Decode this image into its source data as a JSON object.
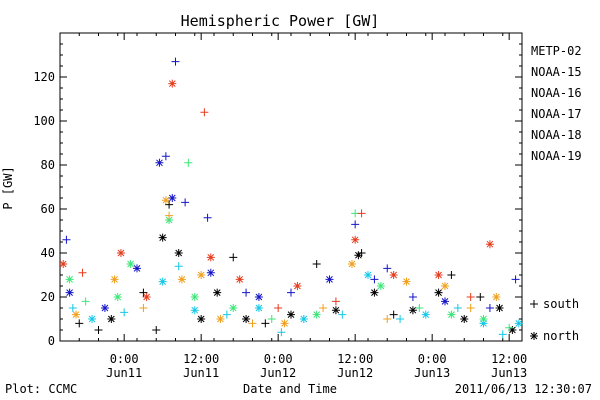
{
  "chart_data": {
    "type": "scatter",
    "title": "Hemispheric Power [GW]",
    "ylabel": "P [GW]",
    "xlabel": "Date and Time",
    "ylim": [
      0,
      140
    ],
    "xlim": [
      "2011-06-10T14:00",
      "2011-06-13T14:00"
    ],
    "y_ticks": [
      0,
      20,
      40,
      60,
      80,
      100,
      120
    ],
    "x_ticks": [
      {
        "value": "2011-06-11T00:00",
        "time": "0:00",
        "date": "Jun11"
      },
      {
        "value": "2011-06-11T12:00",
        "time": "12:00",
        "date": "Jun11"
      },
      {
        "value": "2011-06-12T00:00",
        "time": "0:00",
        "date": "Jun12"
      },
      {
        "value": "2011-06-12T12:00",
        "time": "12:00",
        "date": "Jun12"
      },
      {
        "value": "2011-06-13T00:00",
        "time": "0:00",
        "date": "Jun13"
      },
      {
        "value": "2011-06-13T12:00",
        "time": "12:00",
        "date": "Jun13"
      }
    ],
    "grid": false,
    "legend": "right",
    "marker_legend": [
      {
        "symbol": "+",
        "label": "south"
      },
      {
        "symbol": "*",
        "label": "north"
      }
    ],
    "series": [
      {
        "name": "METP-02",
        "color": "#000000",
        "points": [
          {
            "x": "2011-06-10T17:00",
            "y": 8,
            "m": "+"
          },
          {
            "x": "2011-06-10T20:00",
            "y": 5,
            "m": "+"
          },
          {
            "x": "2011-06-10T22:00",
            "y": 10,
            "m": "*"
          },
          {
            "x": "2011-06-11T03:00",
            "y": 22,
            "m": "+"
          },
          {
            "x": "2011-06-11T05:00",
            "y": 5,
            "m": "+"
          },
          {
            "x": "2011-06-11T06:00",
            "y": 47,
            "m": "*"
          },
          {
            "x": "2011-06-11T07:00",
            "y": 62,
            "m": "+"
          },
          {
            "x": "2011-06-11T08:30",
            "y": 40,
            "m": "*"
          },
          {
            "x": "2011-06-11T12:00",
            "y": 10,
            "m": "*"
          },
          {
            "x": "2011-06-11T14:30",
            "y": 22,
            "m": "*"
          },
          {
            "x": "2011-06-11T17:00",
            "y": 38,
            "m": "+"
          },
          {
            "x": "2011-06-11T19:00",
            "y": 10,
            "m": "*"
          },
          {
            "x": "2011-06-11T22:00",
            "y": 8,
            "m": "+"
          },
          {
            "x": "2011-06-12T02:00",
            "y": 12,
            "m": "*"
          },
          {
            "x": "2011-06-12T06:00",
            "y": 35,
            "m": "+"
          },
          {
            "x": "2011-06-12T09:00",
            "y": 14,
            "m": "*"
          },
          {
            "x": "2011-06-12T12:30",
            "y": 39,
            "m": "*"
          },
          {
            "x": "2011-06-12T13:00",
            "y": 40,
            "m": "+"
          },
          {
            "x": "2011-06-12T15:00",
            "y": 22,
            "m": "*"
          },
          {
            "x": "2011-06-12T18:00",
            "y": 12,
            "m": "+"
          },
          {
            "x": "2011-06-12T21:00",
            "y": 14,
            "m": "*"
          },
          {
            "x": "2011-06-13T01:00",
            "y": 22,
            "m": "*"
          },
          {
            "x": "2011-06-13T03:00",
            "y": 30,
            "m": "+"
          },
          {
            "x": "2011-06-13T05:00",
            "y": 10,
            "m": "*"
          },
          {
            "x": "2011-06-13T07:30",
            "y": 20,
            "m": "+"
          },
          {
            "x": "2011-06-13T10:30",
            "y": 15,
            "m": "*"
          },
          {
            "x": "2011-06-13T12:30",
            "y": 5,
            "m": "*"
          }
        ]
      },
      {
        "name": "NOAA-15",
        "color": "#1414c8",
        "points": [
          {
            "x": "2011-06-10T15:00",
            "y": 46,
            "m": "+"
          },
          {
            "x": "2011-06-10T15:30",
            "y": 22,
            "m": "*"
          },
          {
            "x": "2011-06-10T21:00",
            "y": 15,
            "m": "*"
          },
          {
            "x": "2011-06-11T02:00",
            "y": 33,
            "m": "*"
          },
          {
            "x": "2011-06-11T05:30",
            "y": 81,
            "m": "*"
          },
          {
            "x": "2011-06-11T06:30",
            "y": 84,
            "m": "+"
          },
          {
            "x": "2011-06-11T07:30",
            "y": 65,
            "m": "*"
          },
          {
            "x": "2011-06-11T08:00",
            "y": 127,
            "m": "+"
          },
          {
            "x": "2011-06-11T09:30",
            "y": 63,
            "m": "+"
          },
          {
            "x": "2011-06-11T13:00",
            "y": 56,
            "m": "+"
          },
          {
            "x": "2011-06-11T13:30",
            "y": 31,
            "m": "*"
          },
          {
            "x": "2011-06-11T19:00",
            "y": 22,
            "m": "+"
          },
          {
            "x": "2011-06-11T21:00",
            "y": 20,
            "m": "*"
          },
          {
            "x": "2011-06-12T02:00",
            "y": 22,
            "m": "+"
          },
          {
            "x": "2011-06-12T08:00",
            "y": 28,
            "m": "*"
          },
          {
            "x": "2011-06-12T12:00",
            "y": 53,
            "m": "+"
          },
          {
            "x": "2011-06-12T15:00",
            "y": 28,
            "m": "+"
          },
          {
            "x": "2011-06-12T17:00",
            "y": 33,
            "m": "+"
          },
          {
            "x": "2011-06-12T21:00",
            "y": 20,
            "m": "+"
          },
          {
            "x": "2011-06-13T02:00",
            "y": 18,
            "m": "*"
          },
          {
            "x": "2011-06-13T09:00",
            "y": 15,
            "m": "+"
          },
          {
            "x": "2011-06-13T13:00",
            "y": 28,
            "m": "+"
          }
        ]
      },
      {
        "name": "NOAA-16",
        "color": "#14c8e6",
        "points": [
          {
            "x": "2011-06-10T16:00",
            "y": 15,
            "m": "+"
          },
          {
            "x": "2011-06-10T19:00",
            "y": 10,
            "m": "*"
          },
          {
            "x": "2011-06-11T00:00",
            "y": 13,
            "m": "+"
          },
          {
            "x": "2011-06-11T06:00",
            "y": 27,
            "m": "*"
          },
          {
            "x": "2011-06-11T08:30",
            "y": 34,
            "m": "+"
          },
          {
            "x": "2011-06-11T11:00",
            "y": 14,
            "m": "*"
          },
          {
            "x": "2011-06-11T16:00",
            "y": 12,
            "m": "+"
          },
          {
            "x": "2011-06-11T21:00",
            "y": 15,
            "m": "*"
          },
          {
            "x": "2011-06-12T00:30",
            "y": 4,
            "m": "+"
          },
          {
            "x": "2011-06-12T04:00",
            "y": 10,
            "m": "*"
          },
          {
            "x": "2011-06-12T10:00",
            "y": 12,
            "m": "+"
          },
          {
            "x": "2011-06-12T14:00",
            "y": 30,
            "m": "*"
          },
          {
            "x": "2011-06-12T19:00",
            "y": 10,
            "m": "+"
          },
          {
            "x": "2011-06-12T23:00",
            "y": 12,
            "m": "*"
          },
          {
            "x": "2011-06-13T04:00",
            "y": 15,
            "m": "+"
          },
          {
            "x": "2011-06-13T08:00",
            "y": 8,
            "m": "*"
          },
          {
            "x": "2011-06-13T11:00",
            "y": 3,
            "m": "+"
          },
          {
            "x": "2011-06-13T13:30",
            "y": 8,
            "m": "*"
          }
        ]
      },
      {
        "name": "NOAA-17",
        "color": "#3ce678",
        "points": [
          {
            "x": "2011-06-10T15:30",
            "y": 28,
            "m": "*"
          },
          {
            "x": "2011-06-10T18:00",
            "y": 18,
            "m": "+"
          },
          {
            "x": "2011-06-10T23:00",
            "y": 20,
            "m": "*"
          },
          {
            "x": "2011-06-11T01:00",
            "y": 35,
            "m": "*"
          },
          {
            "x": "2011-06-11T07:00",
            "y": 55,
            "m": "*"
          },
          {
            "x": "2011-06-11T10:00",
            "y": 81,
            "m": "+"
          },
          {
            "x": "2011-06-11T11:00",
            "y": 20,
            "m": "*"
          },
          {
            "x": "2011-06-11T17:00",
            "y": 15,
            "m": "*"
          },
          {
            "x": "2011-06-11T23:00",
            "y": 10,
            "m": "+"
          },
          {
            "x": "2011-06-12T06:00",
            "y": 12,
            "m": "*"
          },
          {
            "x": "2011-06-12T12:00",
            "y": 58,
            "m": "+"
          },
          {
            "x": "2011-06-12T16:00",
            "y": 25,
            "m": "*"
          },
          {
            "x": "2011-06-12T22:00",
            "y": 15,
            "m": "+"
          },
          {
            "x": "2011-06-13T03:00",
            "y": 12,
            "m": "*"
          },
          {
            "x": "2011-06-13T08:00",
            "y": 10,
            "m": "*"
          },
          {
            "x": "2011-06-13T12:00",
            "y": 6,
            "m": "+"
          }
        ]
      },
      {
        "name": "NOAA-18",
        "color": "#f0a01e",
        "points": [
          {
            "x": "2011-06-10T16:30",
            "y": 12,
            "m": "*"
          },
          {
            "x": "2011-06-10T22:30",
            "y": 28,
            "m": "*"
          },
          {
            "x": "2011-06-11T03:00",
            "y": 15,
            "m": "+"
          },
          {
            "x": "2011-06-11T06:30",
            "y": 64,
            "m": "*"
          },
          {
            "x": "2011-06-11T07:00",
            "y": 57,
            "m": "+"
          },
          {
            "x": "2011-06-11T09:00",
            "y": 28,
            "m": "*"
          },
          {
            "x": "2011-06-11T12:00",
            "y": 30,
            "m": "*"
          },
          {
            "x": "2011-06-11T15:00",
            "y": 10,
            "m": "*"
          },
          {
            "x": "2011-06-11T20:00",
            "y": 8,
            "m": "+"
          },
          {
            "x": "2011-06-12T01:00",
            "y": 8,
            "m": "*"
          },
          {
            "x": "2011-06-12T07:00",
            "y": 15,
            "m": "+"
          },
          {
            "x": "2011-06-12T11:30",
            "y": 35,
            "m": "*"
          },
          {
            "x": "2011-06-12T17:00",
            "y": 10,
            "m": "+"
          },
          {
            "x": "2011-06-12T20:00",
            "y": 27,
            "m": "*"
          },
          {
            "x": "2011-06-13T02:00",
            "y": 25,
            "m": "*"
          },
          {
            "x": "2011-06-13T06:00",
            "y": 15,
            "m": "+"
          },
          {
            "x": "2011-06-13T10:00",
            "y": 20,
            "m": "*"
          }
        ]
      },
      {
        "name": "NOAA-19",
        "color": "#e63c1e",
        "points": [
          {
            "x": "2011-06-10T14:30",
            "y": 35,
            "m": "*"
          },
          {
            "x": "2011-06-10T17:30",
            "y": 31,
            "m": "+"
          },
          {
            "x": "2011-06-10T23:30",
            "y": 40,
            "m": "*"
          },
          {
            "x": "2011-06-11T03:30",
            "y": 20,
            "m": "*"
          },
          {
            "x": "2011-06-11T07:30",
            "y": 117,
            "m": "*"
          },
          {
            "x": "2011-06-11T12:30",
            "y": 104,
            "m": "+"
          },
          {
            "x": "2011-06-11T13:30",
            "y": 38,
            "m": "*"
          },
          {
            "x": "2011-06-11T18:00",
            "y": 28,
            "m": "*"
          },
          {
            "x": "2011-06-12T00:00",
            "y": 15,
            "m": "+"
          },
          {
            "x": "2011-06-12T03:00",
            "y": 25,
            "m": "*"
          },
          {
            "x": "2011-06-12T09:00",
            "y": 18,
            "m": "+"
          },
          {
            "x": "2011-06-12T12:00",
            "y": 46,
            "m": "*"
          },
          {
            "x": "2011-06-12T13:00",
            "y": 58,
            "m": "+"
          },
          {
            "x": "2011-06-12T18:00",
            "y": 30,
            "m": "*"
          },
          {
            "x": "2011-06-13T01:00",
            "y": 30,
            "m": "*"
          },
          {
            "x": "2011-06-13T06:00",
            "y": 20,
            "m": "+"
          },
          {
            "x": "2011-06-13T09:00",
            "y": 44,
            "m": "*"
          }
        ]
      }
    ]
  },
  "footer": {
    "plot_credit": "Plot: CCMC",
    "timestamp": "2011/06/13 12:30:07"
  }
}
